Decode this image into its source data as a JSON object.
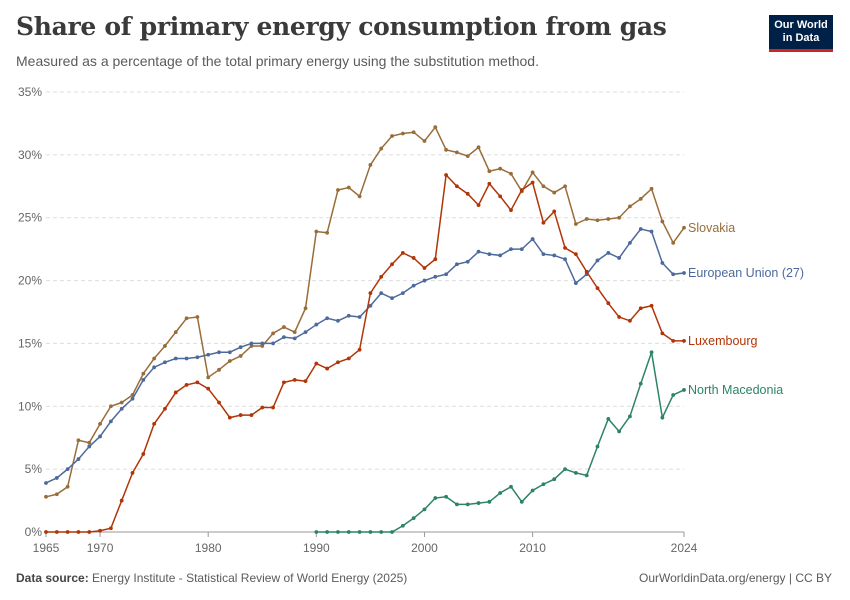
{
  "header": {
    "title": "Share of primary energy consumption from gas",
    "subtitle": "Measured as a percentage of the total primary energy using the substitution method.",
    "logo_line1": "Our World",
    "logo_line2": "in Data"
  },
  "footer": {
    "source_label": "Data source:",
    "source_text": "Energy Institute - Statistical Review of World Energy (2025)",
    "right_text": "OurWorldinData.org/energy | CC BY"
  },
  "colors": {
    "Slovakia": "#996d39",
    "European Union (27)": "#4c6a9c",
    "Luxembourg": "#b13507",
    "North Macedonia": "#2c8465"
  },
  "chart_data": {
    "type": "line",
    "title": "Share of primary energy consumption from gas",
    "xlabel": "",
    "ylabel": "",
    "xlim": [
      1965,
      2024
    ],
    "ylim": [
      0,
      35
    ],
    "y_ticks": [
      0,
      5,
      10,
      15,
      20,
      25,
      30,
      35
    ],
    "y_tick_labels": [
      "0%",
      "5%",
      "10%",
      "15%",
      "20%",
      "25%",
      "30%",
      "35%"
    ],
    "x_ticks": [
      1965,
      1970,
      1980,
      1990,
      2000,
      2010,
      2024
    ],
    "x_tick_labels": [
      "1965",
      "1970",
      "1980",
      "1990",
      "2000",
      "2010",
      "2024"
    ],
    "grid": "horizontal dashed",
    "legend": "inline labels at right end",
    "series": [
      {
        "name": "Slovakia",
        "x_start": 1965,
        "values": [
          2.8,
          3.0,
          3.6,
          7.3,
          7.1,
          8.6,
          10.0,
          10.3,
          10.9,
          12.6,
          13.8,
          14.8,
          15.9,
          17.0,
          17.1,
          12.3,
          12.9,
          13.6,
          14.0,
          14.8,
          14.8,
          15.8,
          16.3,
          15.9,
          17.8,
          23.9,
          23.8,
          27.2,
          27.4,
          26.7,
          29.2,
          30.5,
          31.5,
          31.7,
          31.8,
          31.1,
          32.2,
          30.4,
          30.2,
          29.9,
          30.6,
          28.7,
          28.9,
          28.5,
          27.1,
          28.6,
          27.5,
          27.0,
          27.5,
          24.5,
          24.9,
          24.8,
          24.9,
          25.0,
          25.9,
          26.5,
          27.3,
          24.7,
          23.0,
          24.2
        ]
      },
      {
        "name": "European Union (27)",
        "x_start": 1965,
        "values": [
          3.9,
          4.3,
          5.0,
          5.8,
          6.8,
          7.6,
          8.8,
          9.8,
          10.6,
          12.1,
          13.1,
          13.5,
          13.8,
          13.8,
          13.9,
          14.1,
          14.3,
          14.3,
          14.7,
          15.0,
          15.0,
          15.0,
          15.5,
          15.4,
          15.9,
          16.5,
          17.0,
          16.8,
          17.2,
          17.1,
          18.0,
          19.0,
          18.6,
          19.0,
          19.6,
          20.0,
          20.3,
          20.5,
          21.3,
          21.5,
          22.3,
          22.1,
          22.0,
          22.5,
          22.5,
          23.3,
          22.1,
          22.0,
          21.7,
          19.8,
          20.5,
          21.6,
          22.2,
          21.8,
          23.0,
          24.1,
          23.9,
          21.4,
          20.5,
          20.6
        ]
      },
      {
        "name": "Luxembourg",
        "x_start": 1965,
        "values": [
          0.0,
          0.0,
          0.0,
          0.0,
          0.0,
          0.1,
          0.3,
          2.5,
          4.7,
          6.2,
          8.6,
          9.8,
          11.1,
          11.7,
          11.9,
          11.4,
          10.3,
          9.1,
          9.3,
          9.3,
          9.9,
          9.9,
          11.9,
          12.1,
          12.0,
          13.4,
          13.0,
          13.5,
          13.8,
          14.5,
          19.0,
          20.3,
          21.3,
          22.2,
          21.8,
          21.0,
          21.7,
          28.4,
          27.5,
          26.9,
          26.0,
          27.7,
          26.7,
          25.6,
          27.2,
          27.8,
          24.6,
          25.5,
          22.6,
          22.1,
          20.7,
          19.4,
          18.2,
          17.1,
          16.8,
          17.8,
          18.0,
          15.8,
          15.2,
          15.2
        ]
      },
      {
        "name": "North Macedonia",
        "x_start": 1990,
        "values": [
          0.0,
          0.0,
          0.0,
          0.0,
          0.0,
          0.0,
          0.0,
          0.0,
          0.5,
          1.1,
          1.8,
          2.7,
          2.8,
          2.2,
          2.2,
          2.3,
          2.4,
          3.1,
          3.6,
          2.4,
          3.3,
          3.8,
          4.2,
          5.0,
          4.7,
          4.5,
          6.8,
          9.0,
          8.0,
          9.2,
          11.8,
          14.3,
          9.1,
          10.9,
          11.3
        ]
      }
    ]
  }
}
